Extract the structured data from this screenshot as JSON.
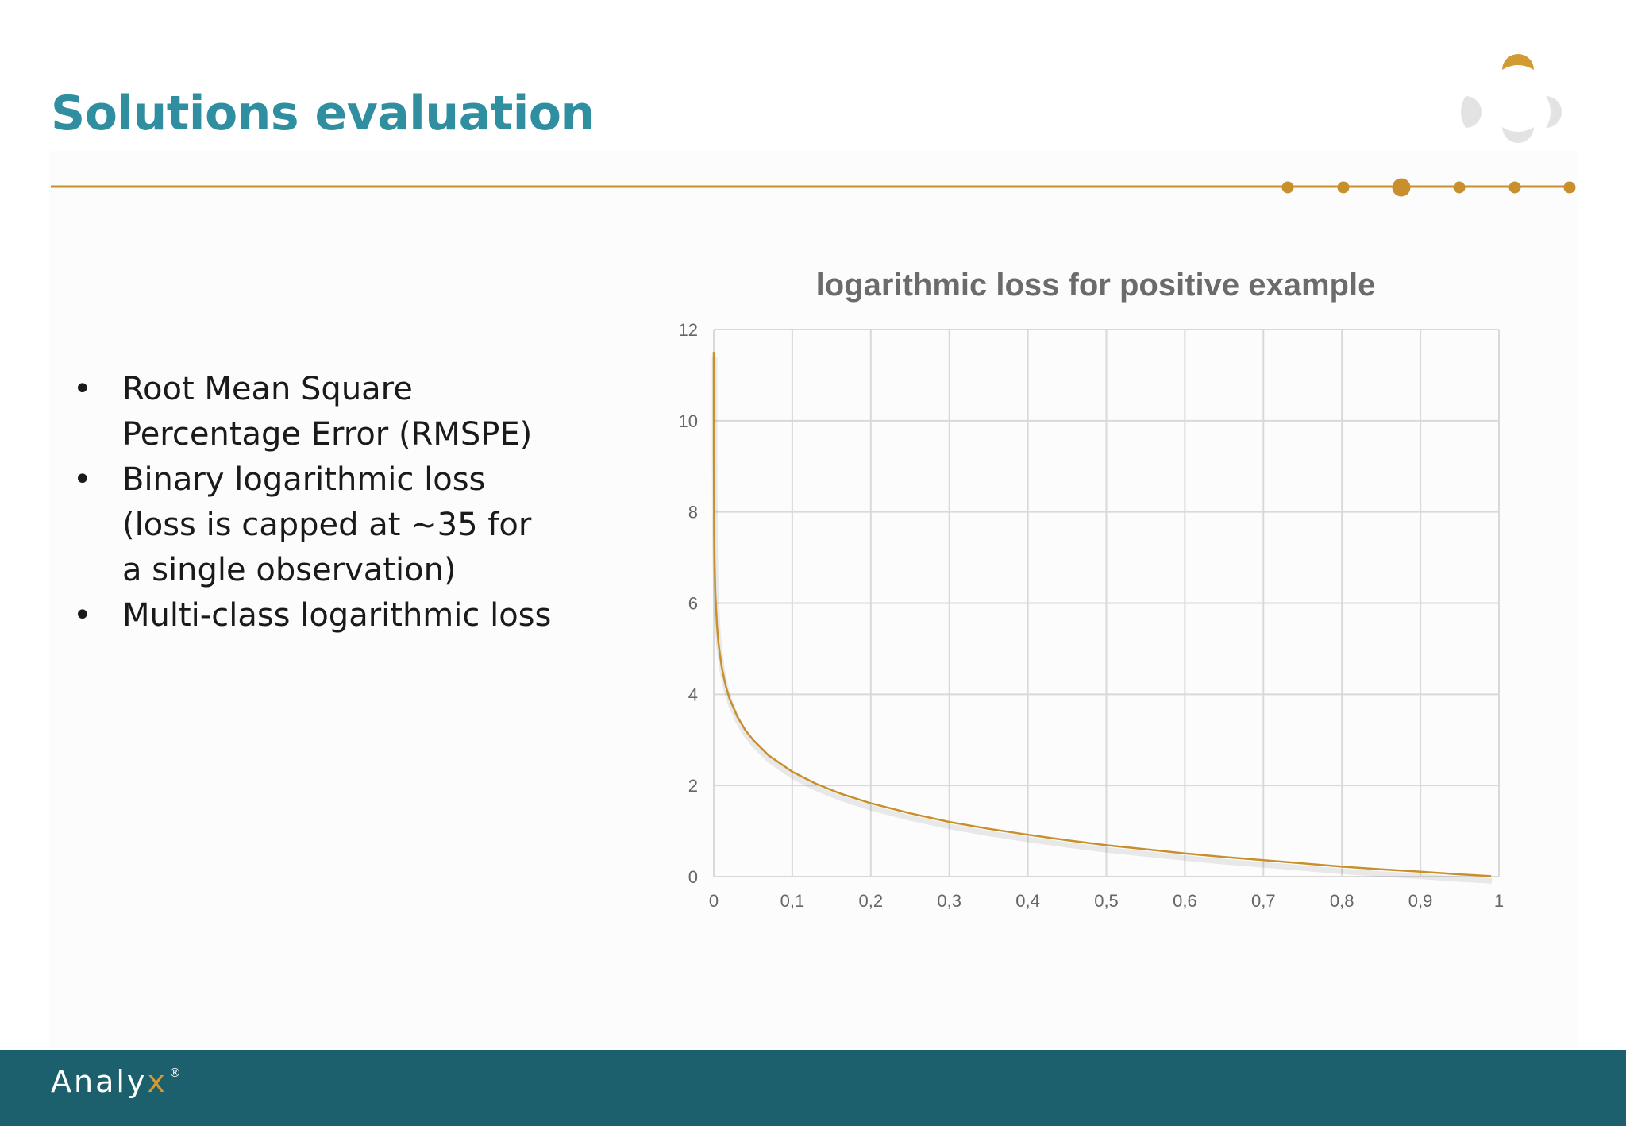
{
  "slide": {
    "title": "Solutions evaluation",
    "bullets": [
      {
        "marker": "•",
        "lines": [
          "Root Mean Square",
          "Percentage Error (RMSPE)"
        ]
      },
      {
        "marker": "•",
        "lines": [
          "Binary logarithmic loss",
          "(loss is capped at ~35 for",
          "a single observation)"
        ]
      },
      {
        "marker": "•",
        "lines": [
          "Multi-class logarithmic loss"
        ]
      }
    ]
  },
  "brand": {
    "name": "Analy",
    "accent": "x",
    "mark": "®"
  },
  "colors": {
    "title": "#2f8ea0",
    "accent": "#c8902c",
    "footer": "#1c5f6d",
    "grid": "#d9d9d9",
    "axis_text": "#666666",
    "chart_title": "#6b6b6b",
    "logo_grey": "#e3e3e3"
  },
  "chart_data": {
    "type": "line",
    "title": "logarithmic loss for positive example",
    "xlabel": "",
    "ylabel": "",
    "xlim": [
      0,
      1
    ],
    "ylim": [
      0,
      12
    ],
    "x_ticks": [
      0,
      0.1,
      0.2,
      0.3,
      0.4,
      0.5,
      0.6,
      0.7,
      0.8,
      0.9,
      1
    ],
    "x_tick_labels": [
      "0",
      "0,1",
      "0,2",
      "0,3",
      "0,4",
      "0,5",
      "0,6",
      "0,7",
      "0,8",
      "0,9",
      "1"
    ],
    "y_ticks": [
      0,
      2,
      4,
      6,
      8,
      10,
      12
    ],
    "y_tick_labels": [
      "0",
      "2",
      "4",
      "6",
      "8",
      "10",
      "12"
    ],
    "grid": true,
    "series": [
      {
        "color": "#c8902c",
        "x": [
          1e-05,
          0.0001,
          0.0005,
          0.001,
          0.002,
          0.004,
          0.006,
          0.01,
          0.015,
          0.02,
          0.03,
          0.04,
          0.05,
          0.07,
          0.1,
          0.13,
          0.16,
          0.2,
          0.25,
          0.3,
          0.35,
          0.4,
          0.45,
          0.5,
          0.55,
          0.6,
          0.65,
          0.7,
          0.75,
          0.8,
          0.85,
          0.9,
          0.95,
          0.99
        ],
        "y": [
          11.51,
          9.21,
          7.6,
          6.91,
          6.21,
          5.52,
          5.12,
          4.61,
          4.2,
          3.91,
          3.51,
          3.22,
          3.0,
          2.66,
          2.3,
          2.04,
          1.83,
          1.61,
          1.39,
          1.2,
          1.05,
          0.92,
          0.8,
          0.69,
          0.6,
          0.51,
          0.43,
          0.36,
          0.29,
          0.22,
          0.16,
          0.11,
          0.05,
          0.01
        ]
      }
    ]
  }
}
